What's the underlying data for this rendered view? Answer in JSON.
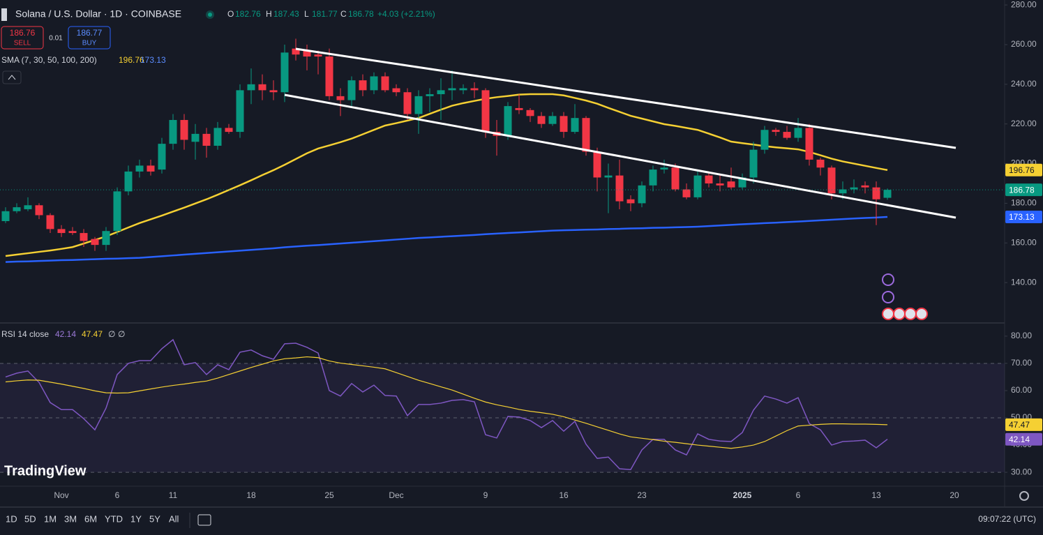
{
  "chart_data": [
    {
      "type": "candlestick",
      "title": "Solana / U.S. Dollar · 1D · COINBASE",
      "change": "+4.03 (+2.21%)",
      "indicator": "SMA (7, 30, 50, 100, 200)",
      "up_color": "#089981",
      "down_color": "#f23645",
      "categories": [
        null,
        null,
        null,
        null,
        null,
        "Nov",
        null,
        null,
        null,
        null,
        "6",
        null,
        null,
        null,
        null,
        "11",
        null,
        null,
        null,
        null,
        null,
        null,
        "18",
        null,
        null,
        null,
        null,
        null,
        null,
        "25",
        null,
        null,
        null,
        null,
        null,
        "Dec",
        null,
        null,
        null,
        null,
        null,
        null,
        null,
        "9",
        null,
        null,
        null,
        null,
        null,
        null,
        "16",
        null,
        null,
        null,
        null,
        null,
        null,
        "23",
        null,
        null,
        null,
        null,
        null,
        null,
        null,
        null,
        "2025",
        null,
        null,
        null,
        null,
        "6",
        null,
        null,
        null,
        null,
        null,
        null,
        "13",
        null,
        null,
        null,
        null,
        null,
        null,
        "20"
      ],
      "open": [
        171,
        176,
        177,
        179,
        174,
        167,
        166,
        165,
        162,
        159,
        166,
        186,
        196,
        199,
        197,
        210,
        222,
        211,
        215,
        209,
        218,
        216,
        237,
        240,
        237,
        236,
        258,
        257,
        255,
        254,
        234,
        232,
        242,
        237,
        244,
        238,
        236,
        225,
        234,
        235,
        237,
        237,
        238,
        237,
        216,
        214,
        228,
        227,
        224,
        220,
        224,
        216,
        223,
        206,
        193,
        194,
        182,
        180,
        189,
        197,
        198,
        187,
        183,
        194,
        190,
        191,
        188,
        193,
        207,
        217,
        216,
        213,
        218,
        202,
        198,
        185,
        187,
        189,
        188,
        182.76,
        null,
        null,
        null,
        null,
        null,
        null
      ],
      "high": [
        178,
        180,
        183,
        180,
        175,
        169,
        168,
        167,
        163,
        168,
        188,
        199,
        202,
        202,
        213,
        225,
        225,
        220,
        218,
        221,
        220,
        240,
        248,
        245,
        242,
        260,
        263,
        260,
        257,
        258,
        238,
        244,
        245,
        246,
        246,
        240,
        238,
        237,
        238,
        243,
        247,
        240,
        241,
        238,
        222,
        231,
        235,
        228,
        226,
        226,
        226,
        230,
        224,
        208,
        200,
        202,
        184,
        191,
        199,
        202,
        200,
        190,
        197,
        196,
        194,
        198,
        195,
        211,
        219,
        218,
        219,
        223,
        220,
        203,
        199,
        191,
        192,
        191,
        191,
        187.43,
        null,
        null,
        null,
        null,
        null,
        null
      ],
      "low": [
        170,
        175,
        176,
        172,
        165,
        163,
        164,
        158,
        156,
        156,
        164,
        184,
        193,
        194,
        195,
        207,
        207,
        202,
        203,
        207,
        215,
        213,
        230,
        232,
        232,
        231,
        252,
        247,
        245,
        232,
        224,
        229,
        234,
        235,
        236,
        234,
        222,
        215,
        226,
        222,
        232,
        235,
        233,
        213,
        204,
        212,
        225,
        221,
        218,
        219,
        213,
        215,
        204,
        186,
        175,
        177,
        176,
        178,
        186,
        195,
        186,
        182,
        182,
        188,
        186,
        187,
        187,
        190,
        205,
        214,
        212,
        211,
        199,
        194,
        182,
        182,
        185,
        185,
        169,
        181.77,
        null,
        null,
        null,
        null,
        null,
        null
      ],
      "close": [
        176,
        178,
        179,
        174,
        167,
        165,
        165,
        161,
        159,
        166,
        186,
        196,
        199,
        196,
        210,
        222,
        212,
        215,
        209,
        218,
        216,
        237,
        240,
        237,
        236,
        256,
        255,
        254,
        254,
        234,
        232,
        242,
        237,
        244,
        237,
        236,
        225,
        234,
        235,
        237,
        238,
        238,
        237,
        216,
        214,
        229,
        227,
        224,
        220,
        224,
        216,
        223,
        206,
        193,
        194,
        181,
        180,
        189,
        197,
        198,
        187,
        183,
        194,
        190,
        189,
        188,
        193,
        207,
        217,
        216,
        213,
        218,
        202,
        198,
        185,
        187,
        188,
        188,
        182,
        186.78,
        null,
        null,
        null,
        null,
        null,
        null
      ],
      "series": [
        {
          "color": "#f5d033",
          "values": [
            153.4,
            154.1,
            154.8,
            155.5,
            156.2,
            157.0,
            157.9,
            159.7,
            161.5,
            163.3,
            165.5,
            167.8,
            170.0,
            171.9,
            173.8,
            175.8,
            177.8,
            179.9,
            182.0,
            184.3,
            186.7,
            189.1,
            191.6,
            194.2,
            196.7,
            199.4,
            202.3,
            205.2,
            207.6,
            209.2,
            210.8,
            212.6,
            214.8,
            217.0,
            219.2,
            220.4,
            221.7,
            223.0,
            225.1,
            227.2,
            229.2,
            230.5,
            231.6,
            232.7,
            233.5,
            234.1,
            234.8,
            235,
            235,
            235,
            234.4,
            233.1,
            231.8,
            230.2,
            228.1,
            226.1,
            224.1,
            222.7,
            221.3,
            219.9,
            219.0,
            218.0,
            217.0,
            215.1,
            213.2,
            211.1,
            210.3,
            209.6,
            208.8,
            208.2,
            207.7,
            207.2,
            205.9,
            204.2,
            202.5,
            201.1,
            200.0,
            198.9,
            197.8,
            196.76,
            null,
            null,
            null,
            null,
            null,
            null
          ]
        },
        {
          "color": "#2962ff",
          "values": [
            150.4,
            150.6,
            150.7,
            150.9,
            151.1,
            151.3,
            151.4,
            151.6,
            151.8,
            152.0,
            152.1,
            152.3,
            152.5,
            152.9,
            153.3,
            153.7,
            154.1,
            154.5,
            154.9,
            155.3,
            155.7,
            156.1,
            156.5,
            156.9,
            157.3,
            157.8,
            158.2,
            158.6,
            158.9,
            159.3,
            159.7,
            160.1,
            160.5,
            160.9,
            161.3,
            161.7,
            162.1,
            162.5,
            162.8,
            163.1,
            163.4,
            163.7,
            164.0,
            164.4,
            164.7,
            165.0,
            165.3,
            165.6,
            165.9,
            166.2,
            166.4,
            166.5,
            166.7,
            166.8,
            167.0,
            167.1,
            167.3,
            167.4,
            167.6,
            167.7,
            167.9,
            168.0,
            168.2,
            168.5,
            168.8,
            169.1,
            169.4,
            169.7,
            170.0,
            170.2,
            170.5,
            170.8,
            171.1,
            171.4,
            171.7,
            172.0,
            172.3,
            172.6,
            172.8,
            173.13,
            null,
            null,
            null,
            null,
            null,
            null
          ]
        }
      ],
      "ylim": [
        120,
        282.5
      ],
      "yticks": [
        {
          "value": 140,
          "label": "140.00"
        },
        {
          "value": 160,
          "label": "160.00"
        },
        {
          "value": 180,
          "label": "180.00"
        },
        {
          "value": 200,
          "label": "200.00"
        },
        {
          "value": 220,
          "label": "220.00"
        },
        {
          "value": 240,
          "label": "240.00"
        },
        {
          "value": 260,
          "label": "260.00"
        },
        {
          "value": 280,
          "label": "280.00"
        }
      ]
    },
    {
      "type": "line",
      "title": "RSI 14 close",
      "extra": [
        "∅",
        "∅"
      ],
      "series": [
        {
          "color": "#7e57c2",
          "values": [
            65,
            66.4,
            67.2,
            63,
            55.6,
            53,
            53,
            49.7,
            45.6,
            53.6,
            65.9,
            70,
            71,
            71,
            75.4,
            78.7,
            69.5,
            70.3,
            65.9,
            69.5,
            67.7,
            74.1,
            74.9,
            72.8,
            71.5,
            77.2,
            77.4,
            75.9,
            73.8,
            60,
            58,
            62.6,
            59.5,
            62,
            58.2,
            58,
            50.8,
            54.9,
            54.9,
            55.4,
            56.4,
            56.7,
            55.9,
            43.8,
            42.6,
            50.5,
            50.3,
            49,
            46.4,
            49,
            45.1,
            48.7,
            40.3,
            35.1,
            35.6,
            31.3,
            31,
            38.2,
            42.1,
            42.1,
            38.2,
            36.4,
            44.1,
            42.1,
            41.5,
            41.3,
            44.6,
            52.8,
            58,
            56.9,
            55.4,
            57.4,
            47.9,
            45.6,
            40,
            41.3,
            41.5,
            41.8,
            39,
            42.14,
            null,
            null,
            null,
            null,
            null,
            null
          ]
        },
        {
          "color": "#f5d033",
          "values": [
            63.2,
            63.6,
            63.9,
            63.8,
            63.1,
            62.4,
            61.6,
            60.8,
            59.9,
            59.2,
            59.1,
            59.2,
            59.9,
            60.6,
            61.3,
            61.9,
            62.4,
            63.0,
            63.5,
            64.6,
            65.9,
            67.2,
            68.5,
            69.7,
            70.9,
            71.7,
            72.0,
            72.4,
            72.1,
            70.9,
            70.1,
            69.6,
            69.1,
            68.6,
            68.0,
            66.6,
            65.2,
            63.8,
            62.6,
            61.4,
            60.2,
            58.7,
            57.2,
            55.8,
            54.8,
            54.0,
            53.1,
            52.4,
            51.9,
            51.3,
            50.4,
            49.2,
            48.0,
            46.7,
            45.4,
            44.1,
            43.0,
            42.5,
            42.0,
            41.4,
            41.0,
            40.5,
            40.0,
            39.6,
            39.2,
            38.8,
            39.3,
            40.0,
            41.3,
            43.3,
            45.3,
            47.0,
            47.3,
            47.6,
            47.8,
            47.8,
            47.7,
            47.7,
            47.6,
            47.47,
            null,
            null,
            null,
            null,
            null,
            null
          ]
        }
      ],
      "levels": [
        70,
        50,
        30
      ],
      "ylim": [
        24.9,
        85.1
      ],
      "yticks": [
        {
          "value": 30,
          "label": "30.00"
        },
        {
          "value": 40,
          "label": "40.00"
        },
        {
          "value": 50,
          "label": "50.00"
        },
        {
          "value": 60,
          "label": "60.00"
        },
        {
          "value": 70,
          "label": "70.00"
        },
        {
          "value": 80,
          "label": "80.00"
        }
      ]
    }
  ],
  "trade": {
    "sell_price": "186.76",
    "sell": "SELL",
    "spread": "0.01",
    "buy_price": "186.77",
    "buy": "BUY"
  },
  "logo": "TradingView",
  "timeframes": [
    "1D",
    "5D",
    "1M",
    "3M",
    "6M",
    "YTD",
    "1Y",
    "5Y",
    "All"
  ],
  "clock": "09:07:22 (UTC)"
}
